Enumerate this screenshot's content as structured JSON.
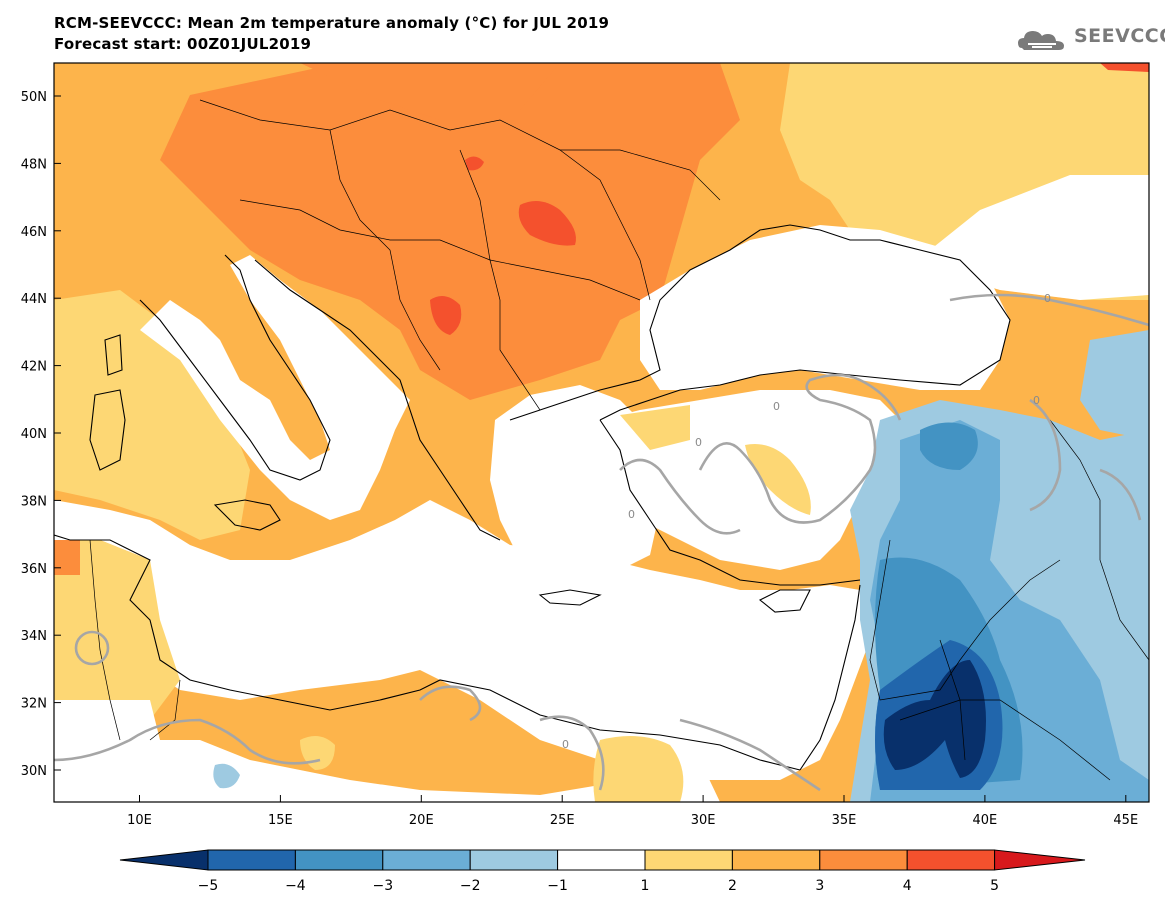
{
  "header": {
    "title_line1": "RCM-SEEVCCC: Mean 2m temperature anomaly (°C) for JUL 2019",
    "title_line2": "Forecast start: 00Z01JUL2019"
  },
  "logo": {
    "text": "SEEVCCC",
    "icon": "cloud-icon"
  },
  "map": {
    "lat_labels": [
      "50N",
      "48N",
      "46N",
      "44N",
      "42N",
      "40N",
      "38N",
      "36N",
      "34N",
      "32N",
      "30N"
    ],
    "lon_labels": [
      "10E",
      "15E",
      "20E",
      "25E",
      "30E",
      "35E",
      "40E",
      "45E"
    ],
    "contour_label": "0"
  },
  "colorbar": {
    "ticks": [
      "−5",
      "−4",
      "−3",
      "−2",
      "−1",
      "1",
      "2",
      "3",
      "4",
      "5"
    ],
    "colors": [
      "#08306b",
      "#2166ac",
      "#4393c3",
      "#6baed6",
      "#9ecae1",
      "#ffffff",
      "#fdd774",
      "#fdb44b",
      "#fc8d3c",
      "#f4512d",
      "#d7191c"
    ]
  }
}
